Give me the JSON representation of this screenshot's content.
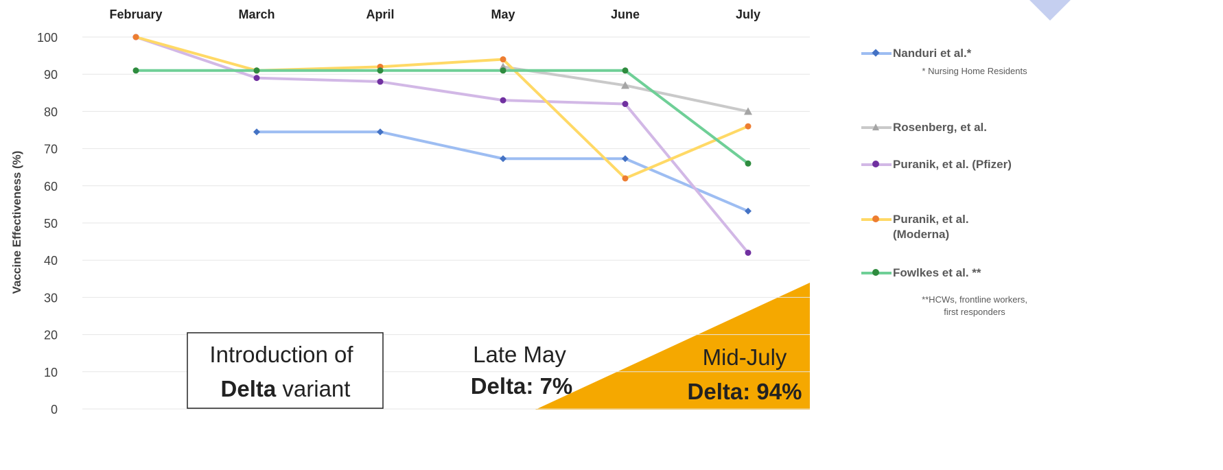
{
  "chart_data": {
    "type": "line",
    "y_label": "Vaccine Effectiveness (%)",
    "categories": [
      "February",
      "March",
      "April",
      "May",
      "June",
      "July"
    ],
    "ylim": [
      0,
      100
    ],
    "yticks": [
      0,
      10,
      20,
      30,
      40,
      50,
      60,
      70,
      80,
      90,
      100
    ],
    "grid": true,
    "series": [
      {
        "name": "Nanduri et al.*",
        "color": "#9dbdf2",
        "marker_color": "#4472c4",
        "marker": "diamond",
        "values": [
          null,
          74.5,
          74.5,
          67.3,
          67.3,
          53.2
        ]
      },
      {
        "name": "Rosenberg, et al.",
        "color": "#c9c9c9",
        "marker_color": "#a5a5a5",
        "marker": "triangle",
        "values": [
          null,
          null,
          null,
          92,
          87,
          80
        ]
      },
      {
        "name": "Puranik, et al. (Pfizer)",
        "color": "#d2b8e6",
        "marker_color": "#7030a0",
        "marker": "circle",
        "values": [
          100,
          89,
          88,
          83,
          82,
          42
        ]
      },
      {
        "name": "Puranik, et al. (Moderna)",
        "color": "#ffd966",
        "marker_color": "#ed7d31",
        "marker": "circle",
        "values": [
          100,
          91,
          92,
          94,
          62,
          76
        ]
      },
      {
        "name": "Fowlkes et al. **",
        "color": "#6fcf97",
        "marker_color": "#2e8b3e",
        "marker": "circle",
        "values": [
          91,
          91,
          91,
          91,
          91,
          66
        ]
      }
    ],
    "footnotes": {
      "nanduri": "* Nursing Home Residents",
      "fowlkes": [
        "**HCWs, frontline workers,",
        "first responders"
      ]
    },
    "annotations": {
      "intro": {
        "line1": "Introduction of",
        "bold": "Delta",
        "rest": "variant"
      },
      "late_may": {
        "line1": "Late May",
        "line2": "Delta: 7%"
      },
      "mid_july": {
        "line1": "Mid-July",
        "line2": "Delta: 94%"
      }
    }
  }
}
